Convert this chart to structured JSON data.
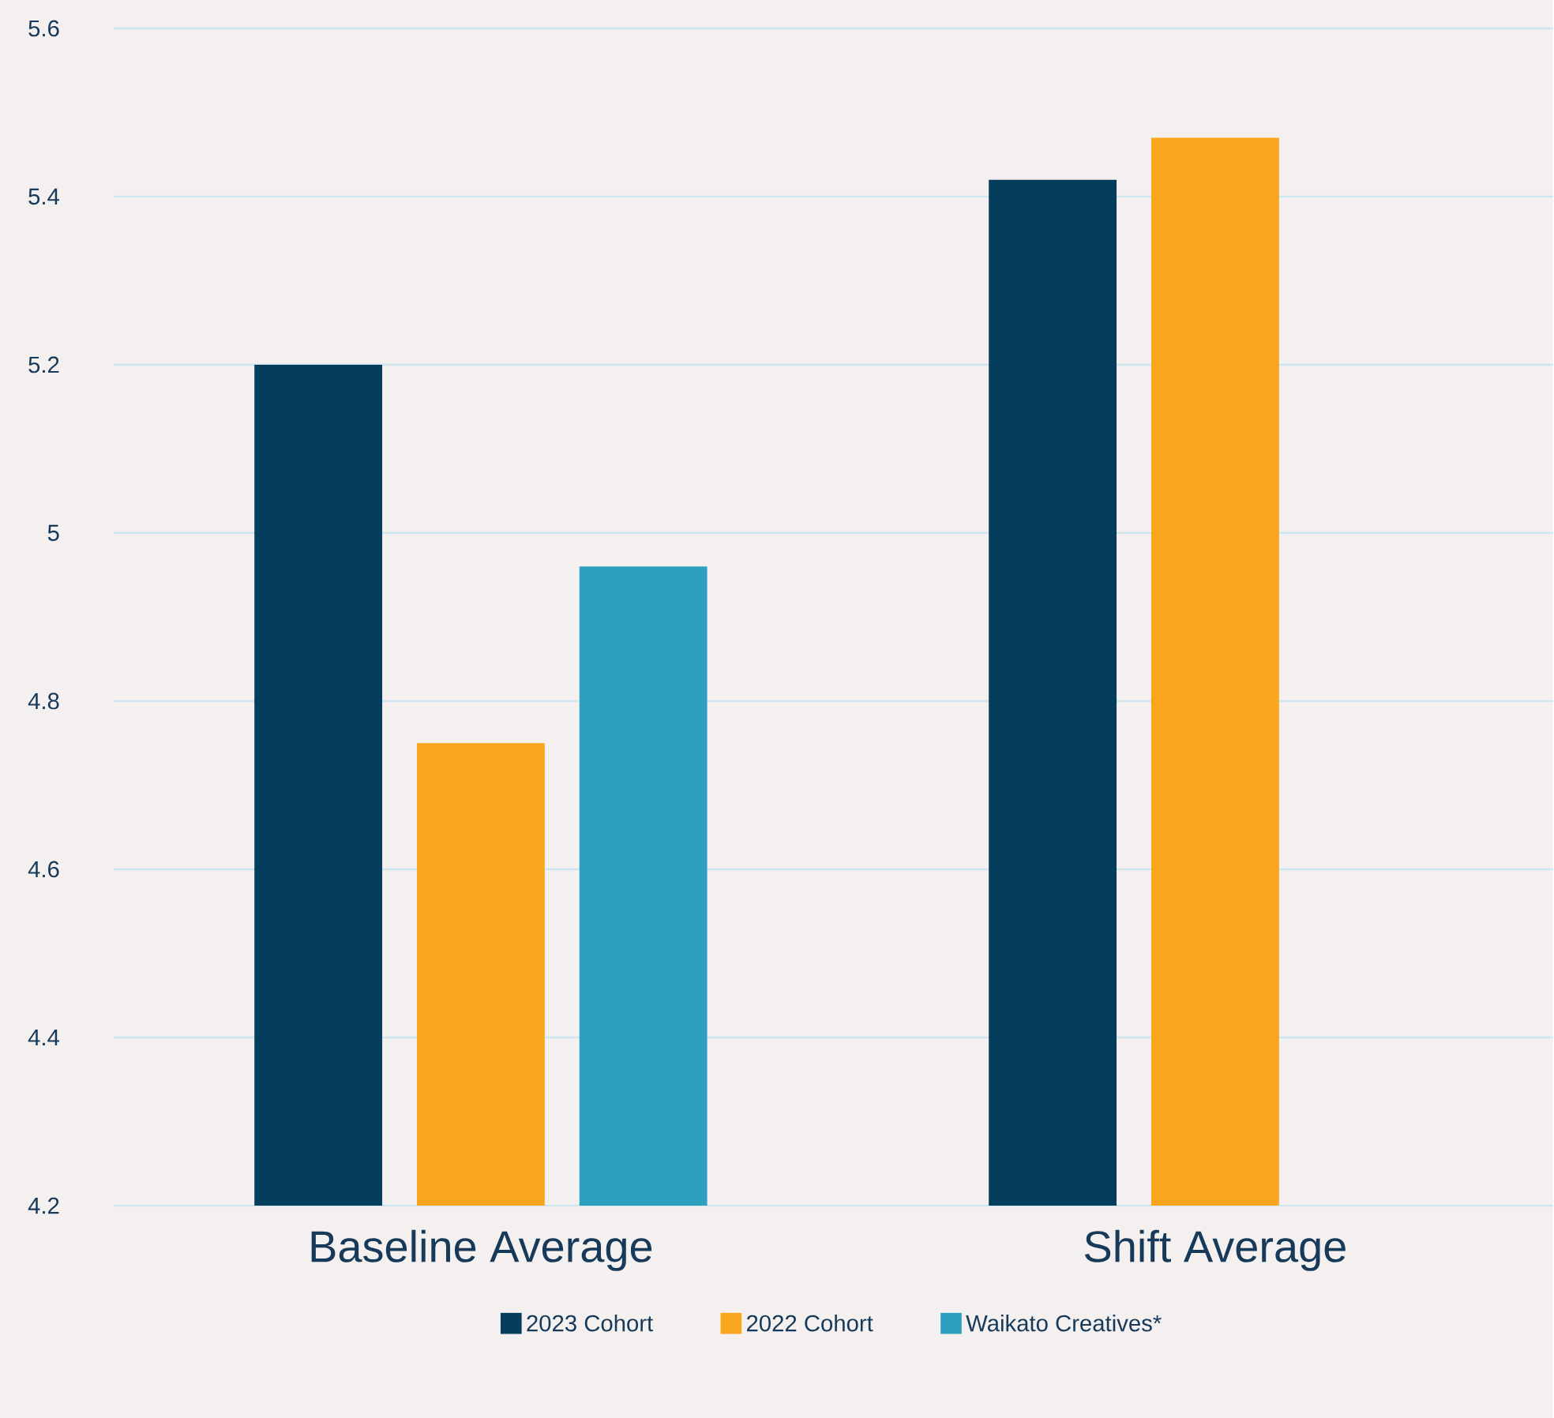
{
  "chart_data": {
    "type": "bar",
    "categories": [
      "Baseline Average",
      "Shift Average"
    ],
    "series": [
      {
        "name": "2023 Cohort",
        "color": "#053e5c",
        "values": [
          5.2,
          5.42
        ]
      },
      {
        "name": "2022 Cohort",
        "color": "#f9a61e",
        "values": [
          4.75,
          5.47
        ]
      },
      {
        "name": "Waikato Creatives*",
        "color": "#2ea0bf",
        "values": [
          4.96,
          null
        ]
      }
    ],
    "ylim": [
      4.2,
      5.6
    ],
    "yticks": [
      4.2,
      4.4,
      4.6,
      4.8,
      5,
      5.2,
      5.4,
      5.6
    ],
    "grid": "y",
    "legend": "bottom"
  }
}
